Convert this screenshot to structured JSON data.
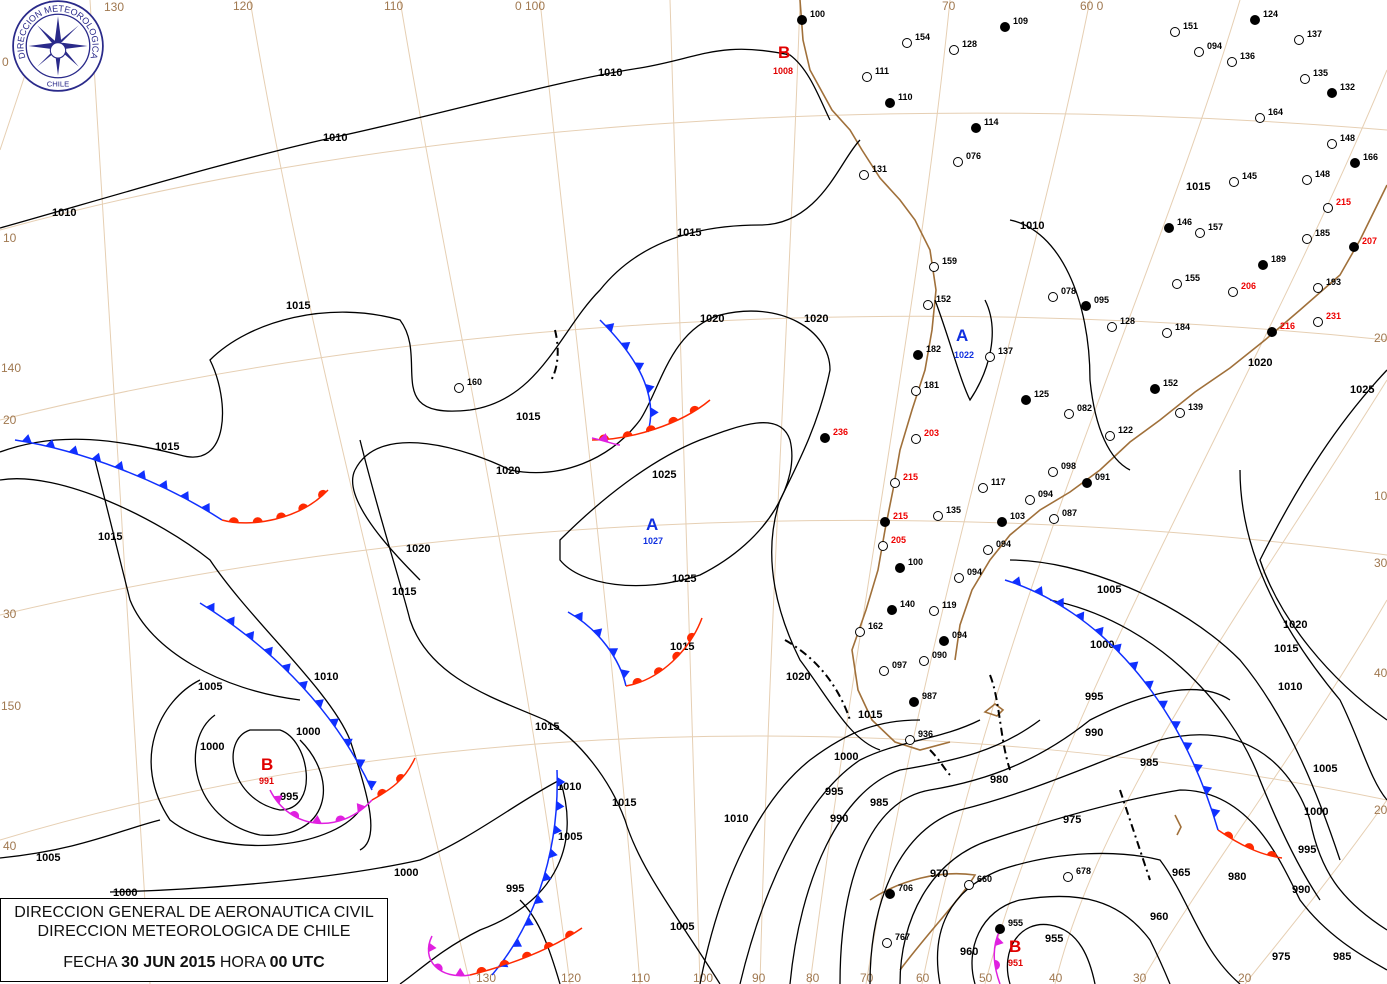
{
  "title_box": {
    "line1": "DIRECCION GENERAL DE AERONAUTICA CIVIL",
    "line2": "DIRECCION METEOROLOGICA DE CHILE",
    "date_prefix": "FECHA",
    "date": "30 JUN 2015",
    "hour_prefix": "HORA",
    "hour": "00 UTC"
  },
  "logo": {
    "text_top": "DIRECCION METEOROLOGICA",
    "text_bottom": "CHILE"
  },
  "grid_labels": {
    "top": [
      "130",
      "120",
      "110",
      "0 100",
      "70",
      "60 0"
    ],
    "left": [
      "0",
      "10",
      "140",
      "20",
      "30",
      "150",
      "40"
    ],
    "bottom": [
      "130",
      "120",
      "110",
      "100",
      "90",
      "80",
      "70",
      "60",
      "50",
      "40",
      "30",
      "20"
    ],
    "right": [
      "20",
      "10",
      "30",
      "40",
      "20"
    ]
  },
  "pressure_centers": [
    {
      "type": "B",
      "value": "1008",
      "color": "#e00000"
    },
    {
      "type": "A",
      "value": "1027",
      "color": "#1030e0"
    },
    {
      "type": "B",
      "value": "991",
      "color": "#e00000"
    },
    {
      "type": "A",
      "value": "1022",
      "color": "#1030e0"
    },
    {
      "type": "B",
      "value": "951",
      "color": "#e00000"
    }
  ],
  "isobar_labels": [
    "1010",
    "1010",
    "1010",
    "1015",
    "1015",
    "1015",
    "1015",
    "1015",
    "1015",
    "1015",
    "1020",
    "1020",
    "1020",
    "1025",
    "1025",
    "1020",
    "1015",
    "1005",
    "1010",
    "1000",
    "995",
    "1005",
    "1000",
    "1015",
    "1010",
    "1005",
    "1000",
    "995",
    "1020",
    "1015",
    "1010",
    "1005",
    "1000",
    "995",
    "990",
    "985",
    "980",
    "975",
    "970",
    "965",
    "960",
    "955",
    "1025",
    "1020",
    "1015",
    "1010",
    "1005",
    "1000",
    "995",
    "990",
    "985",
    "980",
    "975",
    "1000",
    "995",
    "990",
    "985",
    "1005",
    "1020",
    "1015",
    "1010",
    "1000",
    "960"
  ],
  "stations": [
    {
      "p": "100",
      "c": "black"
    },
    {
      "p": "154",
      "c": "black"
    },
    {
      "p": "128",
      "c": "black"
    },
    {
      "p": "109",
      "c": "black"
    },
    {
      "p": "151",
      "c": "black"
    },
    {
      "p": "094",
      "c": "black"
    },
    {
      "p": "124",
      "c": "black"
    },
    {
      "p": "137",
      "c": "black"
    },
    {
      "p": "111",
      "c": "black"
    },
    {
      "p": "110",
      "c": "black"
    },
    {
      "p": "131",
      "c": "black"
    },
    {
      "p": "076",
      "c": "black"
    },
    {
      "p": "114",
      "c": "black"
    },
    {
      "p": "136",
      "c": "black"
    },
    {
      "p": "135",
      "c": "black"
    },
    {
      "p": "132",
      "c": "black"
    },
    {
      "p": "164",
      "c": "black"
    },
    {
      "p": "148",
      "c": "black"
    },
    {
      "p": "166",
      "c": "black"
    },
    {
      "p": "145",
      "c": "black"
    },
    {
      "p": "215",
      "c": "red"
    },
    {
      "p": "207",
      "c": "red"
    },
    {
      "p": "206",
      "c": "red"
    },
    {
      "p": "231",
      "c": "red"
    },
    {
      "p": "216",
      "c": "red"
    },
    {
      "p": "159",
      "c": "black"
    },
    {
      "p": "152",
      "c": "black"
    },
    {
      "p": "182",
      "c": "black"
    },
    {
      "p": "181",
      "c": "black"
    },
    {
      "p": "160",
      "c": "black"
    },
    {
      "p": "236",
      "c": "red"
    },
    {
      "p": "203",
      "c": "red"
    },
    {
      "p": "215",
      "c": "red"
    },
    {
      "p": "215",
      "c": "red"
    },
    {
      "p": "205",
      "c": "red"
    },
    {
      "p": "078",
      "c": "black"
    },
    {
      "p": "095",
      "c": "black"
    },
    {
      "p": "128",
      "c": "black"
    },
    {
      "p": "137",
      "c": "black"
    },
    {
      "p": "125",
      "c": "black"
    },
    {
      "p": "082",
      "c": "black"
    },
    {
      "p": "122",
      "c": "black"
    },
    {
      "p": "152",
      "c": "black"
    },
    {
      "p": "139",
      "c": "black"
    },
    {
      "p": "098",
      "c": "black"
    },
    {
      "p": "091",
      "c": "black"
    },
    {
      "p": "094",
      "c": "black"
    },
    {
      "p": "087",
      "c": "black"
    },
    {
      "p": "103",
      "c": "black"
    },
    {
      "p": "117",
      "c": "black"
    },
    {
      "p": "135",
      "c": "black"
    },
    {
      "p": "100",
      "c": "black"
    },
    {
      "p": "094",
      "c": "black"
    },
    {
      "p": "094",
      "c": "black"
    },
    {
      "p": "140",
      "c": "black"
    },
    {
      "p": "119",
      "c": "black"
    },
    {
      "p": "162",
      "c": "black"
    },
    {
      "p": "094",
      "c": "black"
    },
    {
      "p": "090",
      "c": "black"
    },
    {
      "p": "097",
      "c": "black"
    },
    {
      "p": "987",
      "c": "black"
    },
    {
      "p": "936",
      "c": "black"
    },
    {
      "p": "660",
      "c": "black"
    },
    {
      "p": "706",
      "c": "black"
    },
    {
      "p": "767",
      "c": "black"
    },
    {
      "p": "678",
      "c": "black"
    },
    {
      "p": "955",
      "c": "black"
    },
    {
      "p": "155",
      "c": "black"
    },
    {
      "p": "184",
      "c": "black"
    },
    {
      "p": "189",
      "c": "black"
    },
    {
      "p": "193",
      "c": "black"
    },
    {
      "p": "185",
      "c": "black"
    },
    {
      "p": "146",
      "c": "black"
    },
    {
      "p": "157",
      "c": "black"
    },
    {
      "p": "148",
      "c": "black"
    }
  ],
  "colors": {
    "cold_front": "#1030ff",
    "warm_front": "#ff2a00",
    "occluded_front": "#e020e0",
    "coastline": "#a0703a",
    "grid": "#e6cfb3",
    "isobar": "#000000"
  }
}
